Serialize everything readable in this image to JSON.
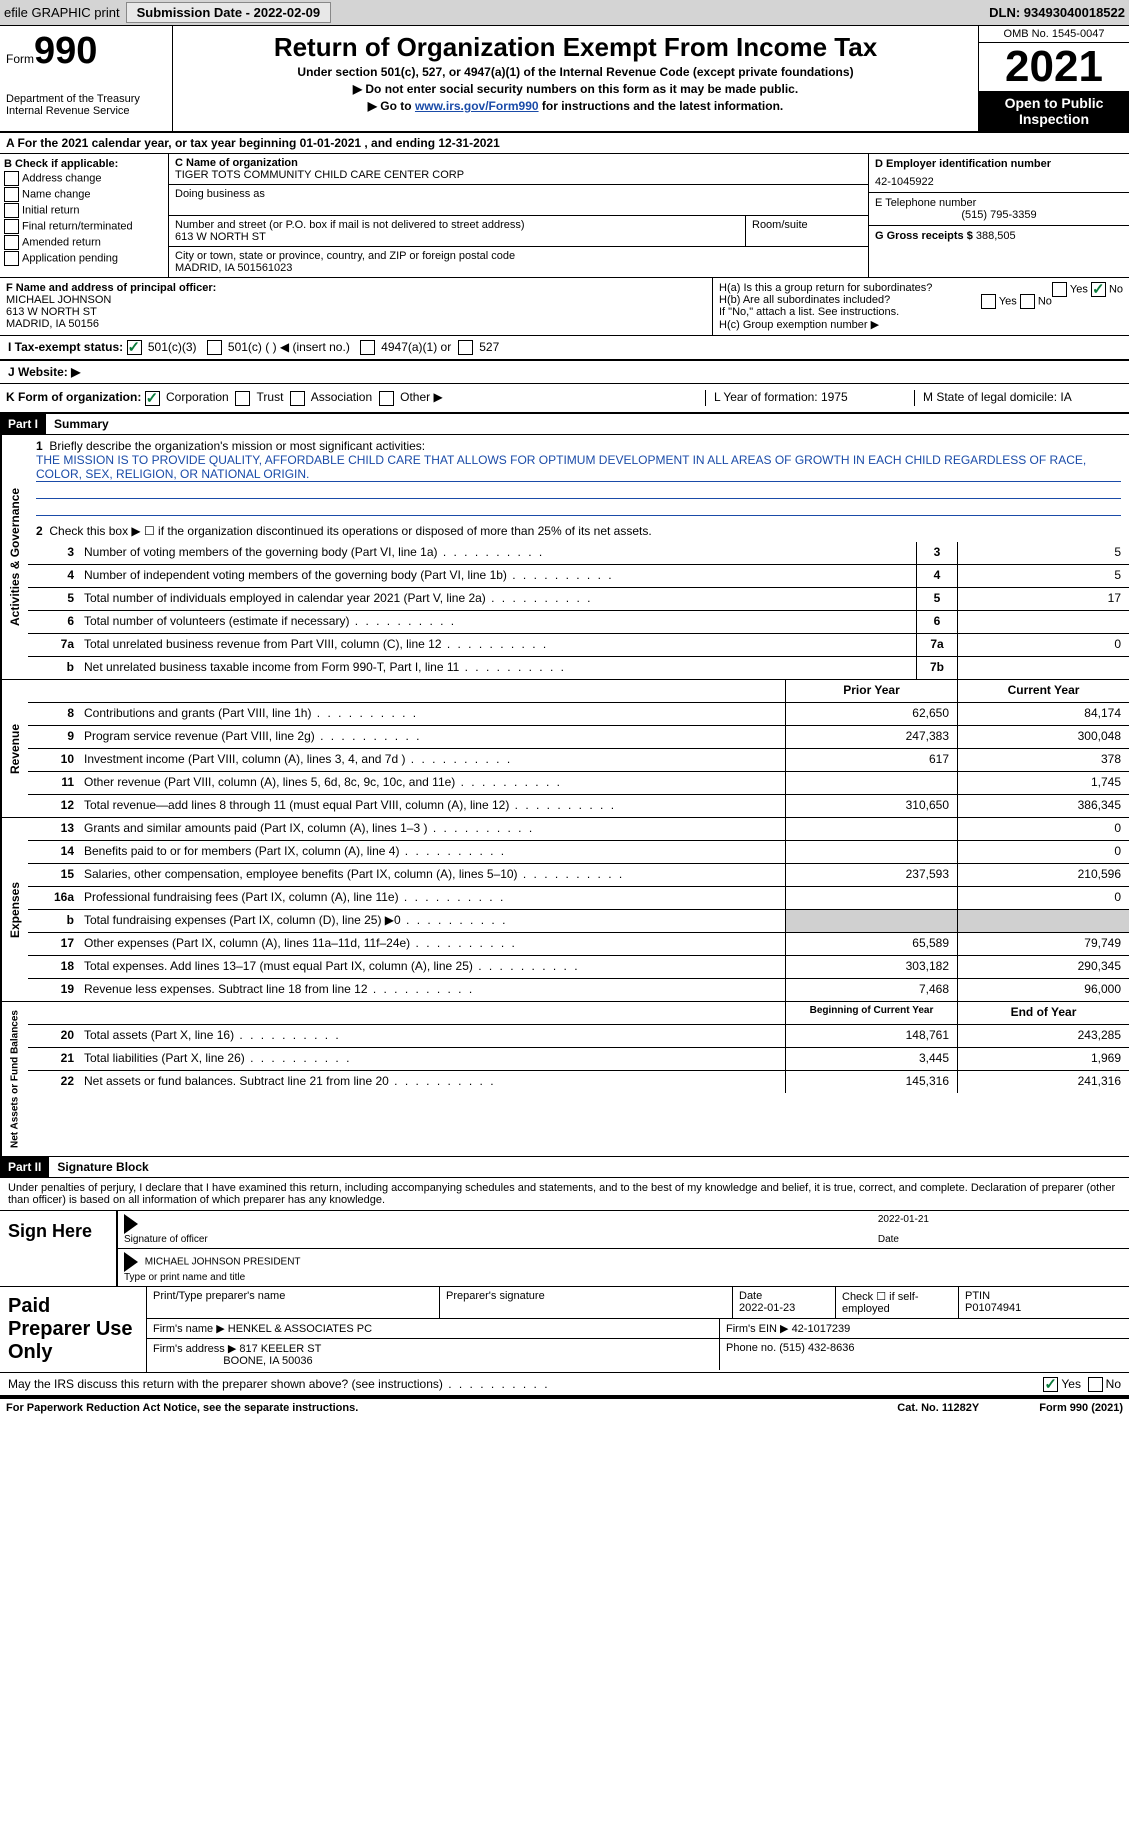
{
  "topbar": {
    "efile": "efile GRAPHIC print",
    "submission_label": "Submission Date - 2022-02-09",
    "dln": "DLN: 93493040018522"
  },
  "header": {
    "form_prefix": "Form",
    "form_number": "990",
    "dept": "Department of the Treasury",
    "irs": "Internal Revenue Service",
    "title": "Return of Organization Exempt From Income Tax",
    "subtitle": "Under section 501(c), 527, or 4947(a)(1) of the Internal Revenue Code (except private foundations)",
    "line1": "▶ Do not enter social security numbers on this form as it may be made public.",
    "line2_pre": "▶ Go to ",
    "line2_link": "www.irs.gov/Form990",
    "line2_post": " for instructions and the latest information.",
    "omb": "OMB No. 1545-0047",
    "year": "2021",
    "otp": "Open to Public Inspection"
  },
  "row_a": "A For the 2021 calendar year, or tax year beginning 01-01-2021    , and ending 12-31-2021",
  "section_b": {
    "label": "B Check if applicable:",
    "opts": [
      "Address change",
      "Name change",
      "Initial return",
      "Final return/terminated",
      "Amended return",
      "Application pending"
    ]
  },
  "section_c": {
    "name_label": "C Name of organization",
    "name": "TIGER TOTS COMMUNITY CHILD CARE CENTER CORP",
    "dba_label": "Doing business as",
    "addr_label": "Number and street (or P.O. box if mail is not delivered to street address)",
    "addr": "613 W NORTH ST",
    "room_label": "Room/suite",
    "city_label": "City or town, state or province, country, and ZIP or foreign postal code",
    "city": "MADRID, IA  501561023"
  },
  "section_d": {
    "ein_label": "D Employer identification number",
    "ein": "42-1045922",
    "phone_label": "E Telephone number",
    "phone": "(515) 795-3359",
    "gross_label": "G Gross receipts $",
    "gross": "388,505"
  },
  "section_f": {
    "label": "F Name and address of principal officer:",
    "name": "MICHAEL JOHNSON",
    "addr1": "613 W NORTH ST",
    "addr2": "MADRID, IA  50156"
  },
  "section_h": {
    "ha": "H(a)  Is this a group return for subordinates?",
    "hb": "H(b)  Are all subordinates included?",
    "hb_note": "If \"No,\" attach a list. See instructions.",
    "hc": "H(c)  Group exemption number ▶",
    "yes": "Yes",
    "no": "No"
  },
  "row_i": {
    "label": "I   Tax-exempt status:",
    "o1": "501(c)(3)",
    "o2": "501(c) (   ) ◀ (insert no.)",
    "o3": "4947(a)(1) or",
    "o4": "527"
  },
  "row_j": "J   Website: ▶",
  "row_k": {
    "label": "K Form of organization:",
    "corp": "Corporation",
    "trust": "Trust",
    "assoc": "Association",
    "other": "Other ▶",
    "l": "L Year of formation: 1975",
    "m": "M State of legal domicile: IA"
  },
  "part1": {
    "header": "Part I",
    "title": "Summary",
    "line1_label": "Briefly describe the organization's mission or most significant activities:",
    "mission": "THE MISSION IS TO PROVIDE QUALITY, AFFORDABLE CHILD CARE THAT ALLOWS FOR OPTIMUM DEVELOPMENT IN ALL AREAS OF GROWTH IN EACH CHILD REGARDLESS OF RACE, COLOR, SEX, RELIGION, OR NATIONAL ORIGIN.",
    "line2": "Check this box ▶ ☐  if the organization discontinued its operations or disposed of more than 25% of its net assets.",
    "rows_gov": [
      {
        "n": "3",
        "d": "Number of voting members of the governing body (Part VI, line 1a)",
        "b": "3",
        "v": "5"
      },
      {
        "n": "4",
        "d": "Number of independent voting members of the governing body (Part VI, line 1b)",
        "b": "4",
        "v": "5"
      },
      {
        "n": "5",
        "d": "Total number of individuals employed in calendar year 2021 (Part V, line 2a)",
        "b": "5",
        "v": "17"
      },
      {
        "n": "6",
        "d": "Total number of volunteers (estimate if necessary)",
        "b": "6",
        "v": ""
      },
      {
        "n": "7a",
        "d": "Total unrelated business revenue from Part VIII, column (C), line 12",
        "b": "7a",
        "v": "0"
      },
      {
        "n": "b",
        "d": "Net unrelated business taxable income from Form 990-T, Part I, line 11",
        "b": "7b",
        "v": ""
      }
    ],
    "col_prior": "Prior Year",
    "col_current": "Current Year",
    "rows_rev": [
      {
        "n": "8",
        "d": "Contributions and grants (Part VIII, line 1h)",
        "p": "62,650",
        "c": "84,174"
      },
      {
        "n": "9",
        "d": "Program service revenue (Part VIII, line 2g)",
        "p": "247,383",
        "c": "300,048"
      },
      {
        "n": "10",
        "d": "Investment income (Part VIII, column (A), lines 3, 4, and 7d )",
        "p": "617",
        "c": "378"
      },
      {
        "n": "11",
        "d": "Other revenue (Part VIII, column (A), lines 5, 6d, 8c, 9c, 10c, and 11e)",
        "p": "",
        "c": "1,745"
      },
      {
        "n": "12",
        "d": "Total revenue—add lines 8 through 11 (must equal Part VIII, column (A), line 12)",
        "p": "310,650",
        "c": "386,345"
      }
    ],
    "rows_exp": [
      {
        "n": "13",
        "d": "Grants and similar amounts paid (Part IX, column (A), lines 1–3 )",
        "p": "",
        "c": "0"
      },
      {
        "n": "14",
        "d": "Benefits paid to or for members (Part IX, column (A), line 4)",
        "p": "",
        "c": "0"
      },
      {
        "n": "15",
        "d": "Salaries, other compensation, employee benefits (Part IX, column (A), lines 5–10)",
        "p": "237,593",
        "c": "210,596"
      },
      {
        "n": "16a",
        "d": "Professional fundraising fees (Part IX, column (A), line 11e)",
        "p": "",
        "c": "0"
      },
      {
        "n": "b",
        "d": "Total fundraising expenses (Part IX, column (D), line 25) ▶0",
        "p": "shaded",
        "c": "shaded"
      },
      {
        "n": "17",
        "d": "Other expenses (Part IX, column (A), lines 11a–11d, 11f–24e)",
        "p": "65,589",
        "c": "79,749"
      },
      {
        "n": "18",
        "d": "Total expenses. Add lines 13–17 (must equal Part IX, column (A), line 25)",
        "p": "303,182",
        "c": "290,345"
      },
      {
        "n": "19",
        "d": "Revenue less expenses. Subtract line 18 from line 12",
        "p": "7,468",
        "c": "96,000"
      }
    ],
    "col_begin": "Beginning of Current Year",
    "col_end": "End of Year",
    "rows_net": [
      {
        "n": "20",
        "d": "Total assets (Part X, line 16)",
        "p": "148,761",
        "c": "243,285"
      },
      {
        "n": "21",
        "d": "Total liabilities (Part X, line 26)",
        "p": "3,445",
        "c": "1,969"
      },
      {
        "n": "22",
        "d": "Net assets or fund balances. Subtract line 21 from line 20",
        "p": "145,316",
        "c": "241,316"
      }
    ],
    "side_gov": "Activities & Governance",
    "side_rev": "Revenue",
    "side_exp": "Expenses",
    "side_net": "Net Assets or Fund Balances"
  },
  "part2": {
    "header": "Part II",
    "title": "Signature Block",
    "declaration": "Under penalties of perjury, I declare that I have examined this return, including accompanying schedules and statements, and to the best of my knowledge and belief, it is true, correct, and complete. Declaration of preparer (other than officer) is based on all information of which preparer has any knowledge.",
    "sign_here": "Sign Here",
    "sig_officer": "Signature of officer",
    "sig_date": "2022-01-21",
    "date_label": "Date",
    "officer_name": "MICHAEL JOHNSON  PRESIDENT",
    "name_title_label": "Type or print name and title",
    "paid_label": "Paid Preparer Use Only",
    "prep_name_label": "Print/Type preparer's name",
    "prep_sig_label": "Preparer's signature",
    "prep_date_label": "Date",
    "prep_date": "2022-01-23",
    "self_emp": "Check ☐ if self-employed",
    "ptin_label": "PTIN",
    "ptin": "P01074941",
    "firm_name_label": "Firm's name    ▶",
    "firm_name": "HENKEL & ASSOCIATES PC",
    "firm_ein_label": "Firm's EIN ▶",
    "firm_ein": "42-1017239",
    "firm_addr_label": "Firm's address ▶",
    "firm_addr": "817 KEELER ST",
    "firm_city": "BOONE, IA  50036",
    "firm_phone_label": "Phone no.",
    "firm_phone": "(515) 432-8636",
    "discuss": "May the IRS discuss this return with the preparer shown above? (see instructions)",
    "yes": "Yes",
    "no": "No"
  },
  "footer": {
    "pra": "For Paperwork Reduction Act Notice, see the separate instructions.",
    "cat": "Cat. No. 11282Y",
    "form": "Form 990 (2021)"
  }
}
